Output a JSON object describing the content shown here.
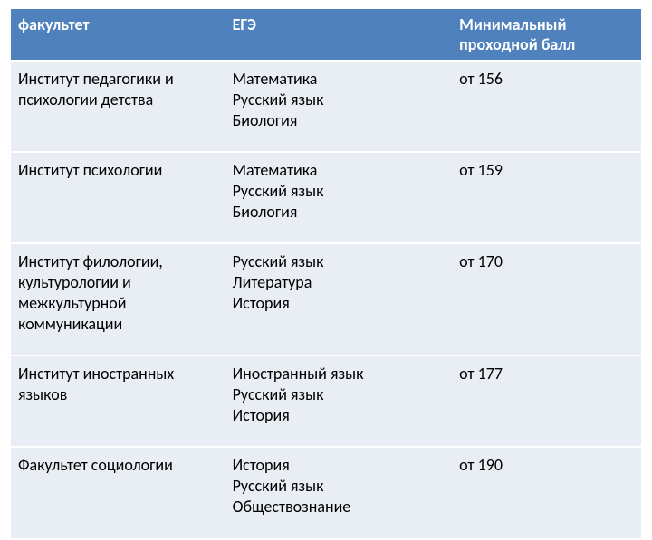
{
  "table": {
    "header_bg": "#4F81BD",
    "header_fg": "#ffffff",
    "row_bg": "#E9EDF4",
    "row_fg": "#000000",
    "font_size": 18,
    "columns": [
      {
        "label": "факультет",
        "width": "34%"
      },
      {
        "label": "ЕГЭ",
        "width": "36%"
      },
      {
        "label": "Минимальный проходной балл",
        "width": "30%"
      }
    ],
    "rows": [
      {
        "faculty": "Институт педагогики и психологии детства",
        "subjects": [
          "Математика",
          "Русский язык",
          "Биология"
        ],
        "score": "от 156"
      },
      {
        "faculty": "Институт психологии",
        "subjects": [
          "Математика",
          "Русский язык",
          "Биология"
        ],
        "score": "от 159"
      },
      {
        "faculty": "Институт филологии, культурологии и межкультурной коммуникации",
        "subjects": [
          "Русский язык",
          "Литература",
          "История"
        ],
        "score": "от 170"
      },
      {
        "faculty": "Институт иностранных языков",
        "subjects": [
          "Иностранный язык",
          "Русский язык",
          "История"
        ],
        "score": "от 177"
      },
      {
        "faculty": "Факультет социологии",
        "subjects": [
          "История",
          "Русский язык",
          "Обществознание"
        ],
        "score": "от 190"
      }
    ]
  }
}
